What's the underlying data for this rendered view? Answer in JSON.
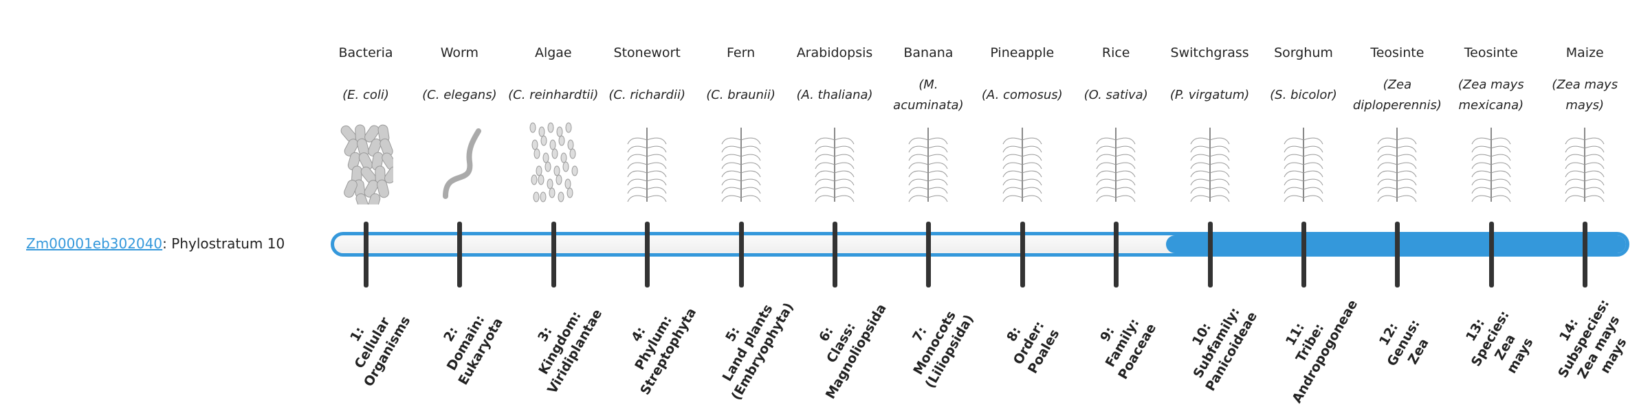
{
  "gene": {
    "id": "Zm00001eb302040",
    "separator": ":",
    "text": " Phylostratum 10",
    "link_color": "#3498db"
  },
  "phylostratum": {
    "current": 10,
    "total": 14,
    "fill_color": "#3498db"
  },
  "columns": [
    {
      "common": "Bacteria",
      "species": "(E. coli)",
      "icon": "bacteria-icon",
      "rank": [
        "1:",
        "Cellular",
        "Organisms"
      ]
    },
    {
      "common": "Worm",
      "species": "(C. elegans)",
      "icon": "worm-icon",
      "rank": [
        "2:",
        "Domain:",
        "Eukaryota"
      ]
    },
    {
      "common": "Algae",
      "species": "(C. reinhardtii)",
      "icon": "algae-icon",
      "rank": [
        "3:",
        "Kingdom:",
        "Viridiplantae"
      ]
    },
    {
      "common": "Stonewort",
      "species": "(C. richardii)",
      "icon": "stonewort-icon",
      "rank": [
        "4:",
        "Phylum:",
        "Streptophyta"
      ]
    },
    {
      "common": "Fern",
      "species": "(C. braunii)",
      "icon": "fern-icon",
      "rank": [
        "5:",
        "Land plants",
        "(Embryophyta)"
      ]
    },
    {
      "common": "Arabidopsis",
      "species": "(A. thaliana)",
      "icon": "arabidopsis-icon",
      "rank": [
        "6:",
        "Class:",
        "Magnoliopsida"
      ]
    },
    {
      "common": "Banana",
      "species": "(M. acuminata)",
      "icon": "banana-icon",
      "rank": [
        "7:",
        "Monocots",
        "(Liliopsida)"
      ]
    },
    {
      "common": "Pineapple",
      "species": "(A. comosus)",
      "icon": "pineapple-icon",
      "rank": [
        "8:",
        "Order:",
        "Poales"
      ]
    },
    {
      "common": "Rice",
      "species": "(O. sativa)",
      "icon": "rice-icon",
      "rank": [
        "9:",
        "Family:",
        "Poaceae"
      ]
    },
    {
      "common": "Switchgrass",
      "species": "(P. virgatum)",
      "icon": "switchgrass-icon",
      "rank": [
        "10:",
        "Subfamily:",
        "Panicoideae"
      ]
    },
    {
      "common": "Sorghum",
      "species": "(S. bicolor)",
      "icon": "sorghum-icon",
      "rank": [
        "11:",
        "Tribe:",
        "Andropogoneae"
      ]
    },
    {
      "common": "Teosinte",
      "species": "(Zea diploperennis)",
      "icon": "teosinte-icon",
      "rank": [
        "12:",
        "Genus:",
        "Zea"
      ]
    },
    {
      "common": "Teosinte",
      "species": "(Zea mays mexicana)",
      "icon": "teosinte-mexicana-icon",
      "rank": [
        "13:",
        "Species:",
        "Zea",
        "mays"
      ]
    },
    {
      "common": "Maize",
      "species": "(Zea mays mays)",
      "icon": "maize-icon",
      "rank": [
        "14:",
        "Subspecies:",
        "Zea mays",
        "mays"
      ]
    }
  ]
}
